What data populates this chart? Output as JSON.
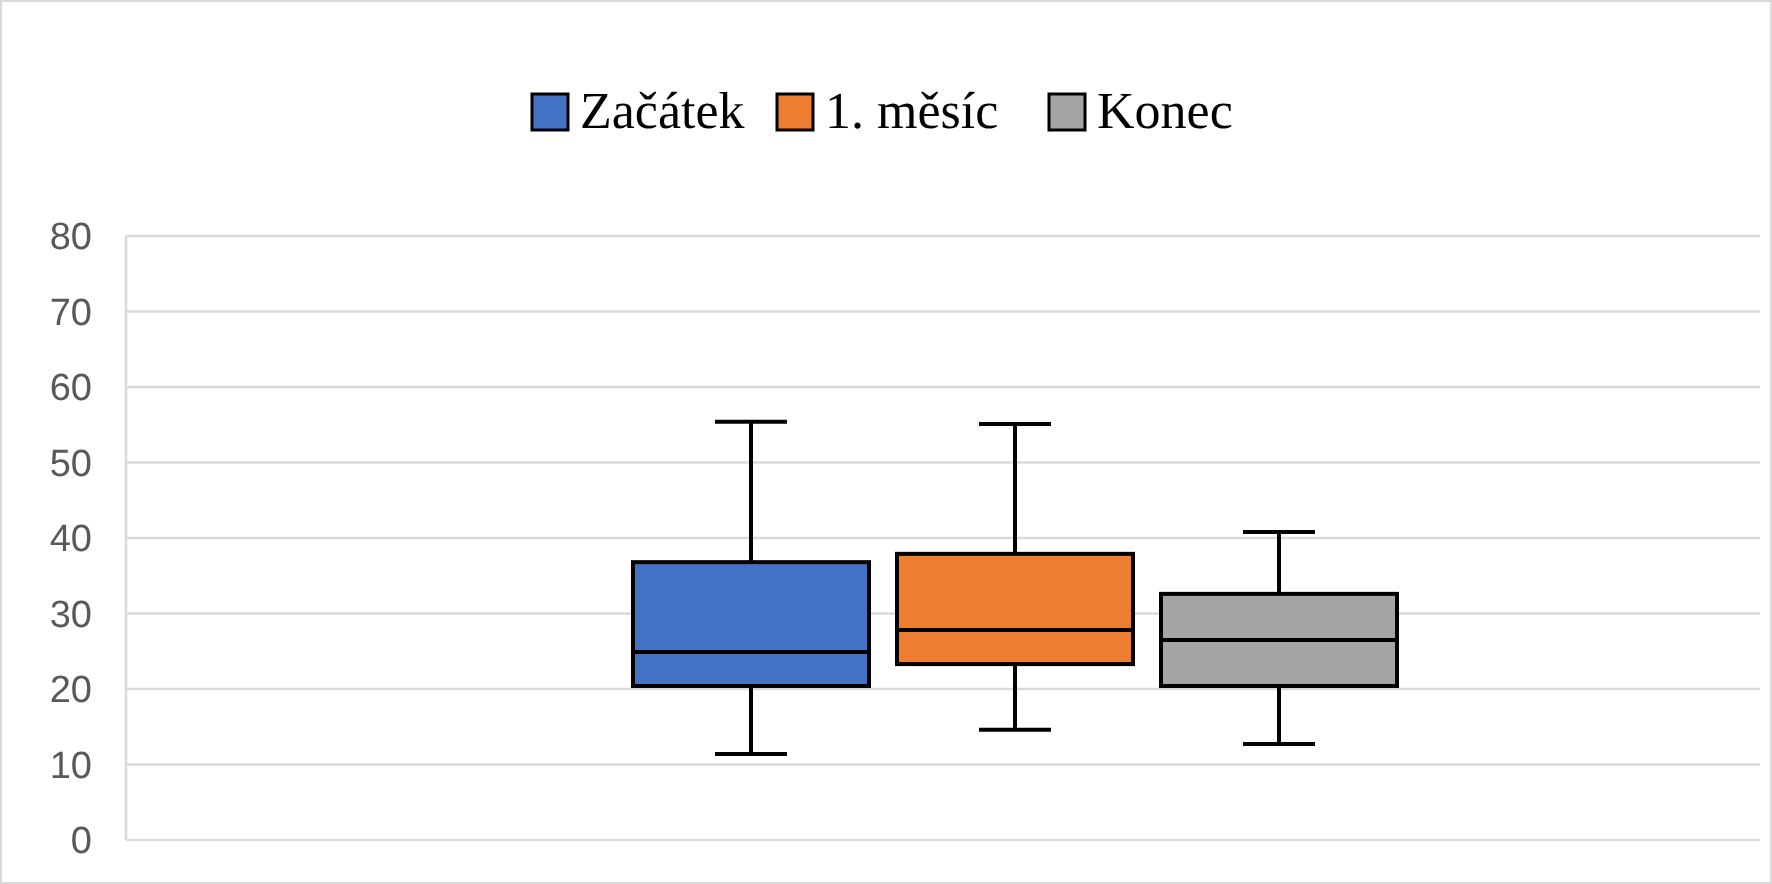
{
  "chart_data": {
    "type": "box",
    "categories": [
      null
    ],
    "series": [
      {
        "name": "Začátek",
        "color": "#4472c4",
        "boxes": [
          {
            "low": 11.4,
            "q1": 20.4,
            "median": 24.9,
            "q3": 36.8,
            "high": 55.4
          }
        ]
      },
      {
        "name": "1. měsíc",
        "color": "#ed7d31",
        "boxes": [
          {
            "low": 14.6,
            "q1": 23.3,
            "median": 27.8,
            "q3": 37.9,
            "high": 55.1
          }
        ]
      },
      {
        "name": "Konec",
        "color": "#a5a5a5",
        "boxes": [
          {
            "low": 12.7,
            "q1": 20.4,
            "median": 26.5,
            "q3": 32.6,
            "high": 40.8
          }
        ]
      }
    ],
    "ylim": [
      0,
      80
    ],
    "yticks": [
      0,
      10,
      20,
      30,
      40,
      50,
      60,
      70,
      80
    ],
    "grid": "y",
    "legend": "top"
  }
}
